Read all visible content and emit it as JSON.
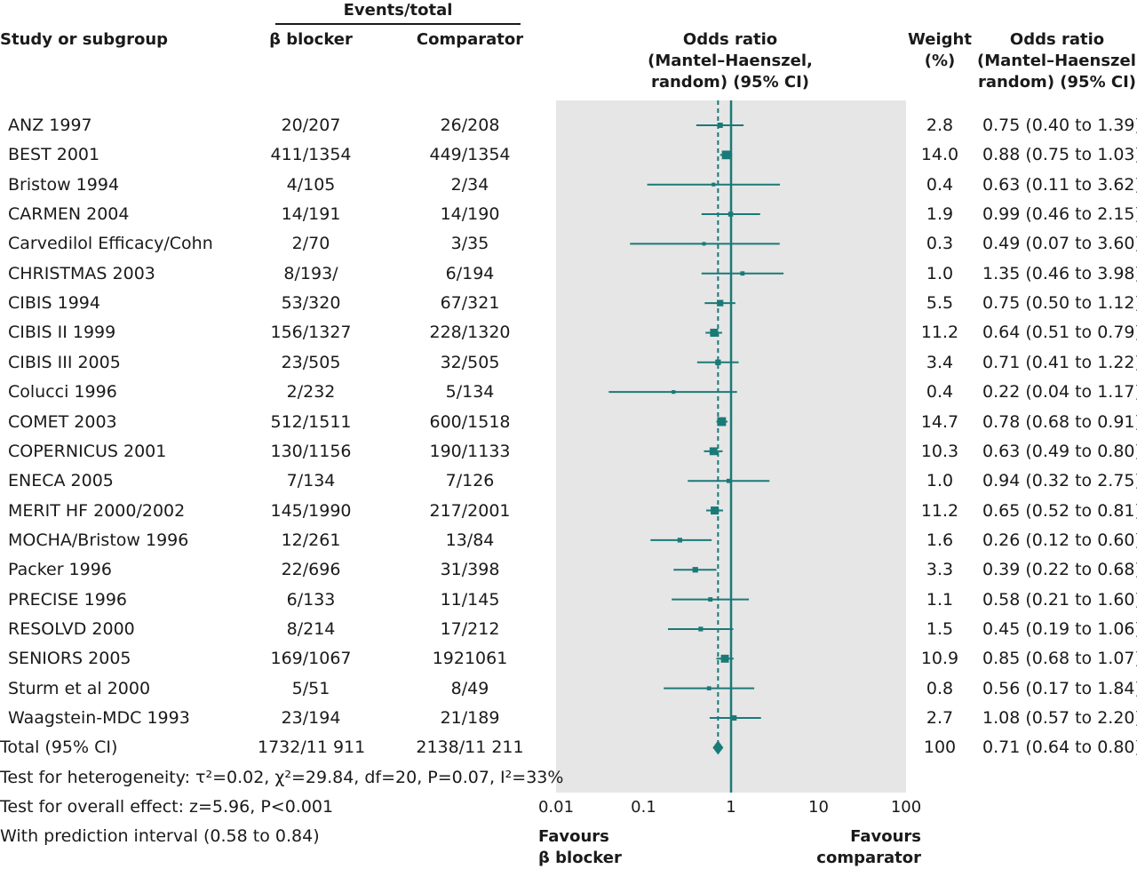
{
  "headers": {
    "events_total": "Events/total",
    "study": "Study or subgroup",
    "bblocker": "β blocker",
    "comparator": "Comparator",
    "or_line1": "Odds ratio",
    "or_line2": "(Mantel–Haenszel,",
    "or_line3": "random) (95% CI)",
    "weight_line1": "Weight",
    "weight_line2": "(%)",
    "or2_line1": "Odds ratio",
    "or2_line2": "(Mantel–Haenszel,",
    "or2_line3": "random) (95% CI)"
  },
  "footer": {
    "heterogeneity": "Test for heterogeneity: τ²=0.02, χ²=29.84, df=20, P=0.07, I²=33%",
    "overall_effect": "Test for overall effect: z=5.96, P<0.001",
    "prediction_interval": "With prediction interval (0.58 to 0.84)",
    "favours_left_1": "Favours",
    "favours_left_2": "β blocker",
    "favours_right_1": "Favours",
    "favours_right_2": "comparator"
  },
  "colors": {
    "marker": "#1a7a78",
    "plot_bg": "#e6e6e6",
    "text": "#1a1a1a"
  },
  "chart_data": {
    "type": "forest",
    "title": "Odds ratio (Mantel–Haenszel, random) (95% CI)",
    "xscale": "log",
    "xlim": [
      0.01,
      100
    ],
    "xticks": [
      0.01,
      0.1,
      1,
      10,
      100
    ],
    "xtick_labels": [
      "0.01",
      "0.1",
      "1",
      "10",
      "100"
    ],
    "reference_line": 1,
    "pooled_estimate_line": 0.71,
    "studies": [
      {
        "name": "ANZ 1997",
        "bb": "20/207",
        "comp": "26/208",
        "weight": "2.8",
        "or_text": "0.75 (0.40 to 1.39)",
        "or": 0.75,
        "lo": 0.4,
        "hi": 1.39
      },
      {
        "name": "BEST 2001",
        "bb": "411/1354",
        "comp": "449/1354",
        "weight": "14.0",
        "or_text": "0.88 (0.75 to 1.03)",
        "or": 0.88,
        "lo": 0.75,
        "hi": 1.03
      },
      {
        "name": "Bristow 1994",
        "bb": "4/105",
        "comp": "2/34",
        "weight": "0.4",
        "or_text": "0.63 (0.11 to 3.62)",
        "or": 0.63,
        "lo": 0.11,
        "hi": 3.62
      },
      {
        "name": "CARMEN 2004",
        "bb": "14/191",
        "comp": "14/190",
        "weight": "1.9",
        "or_text": "0.99 (0.46 to 2.15)",
        "or": 0.99,
        "lo": 0.46,
        "hi": 2.15
      },
      {
        "name": "Carvedilol Efficacy/Cohn",
        "bb": "2/70",
        "comp": "3/35",
        "weight": "0.3",
        "or_text": "0.49 (0.07 to 3.60)",
        "or": 0.49,
        "lo": 0.07,
        "hi": 3.6
      },
      {
        "name": "CHRISTMAS 2003",
        "bb": "8/193/",
        "comp": "6/194",
        "weight": "1.0",
        "or_text": "1.35 (0.46 to 3.98)",
        "or": 1.35,
        "lo": 0.46,
        "hi": 3.98
      },
      {
        "name": "CIBIS 1994",
        "bb": "53/320",
        "comp": "67/321",
        "weight": "5.5",
        "or_text": "0.75 (0.50 to 1.12)",
        "or": 0.75,
        "lo": 0.5,
        "hi": 1.12
      },
      {
        "name": "CIBIS II 1999",
        "bb": "156/1327",
        "comp": "228/1320",
        "weight": "11.2",
        "or_text": "0.64 (0.51 to 0.79)",
        "or": 0.64,
        "lo": 0.51,
        "hi": 0.79
      },
      {
        "name": "CIBIS III 2005",
        "bb": "23/505",
        "comp": "32/505",
        "weight": "3.4",
        "or_text": "0.71 (0.41 to 1.22)",
        "or": 0.71,
        "lo": 0.41,
        "hi": 1.22
      },
      {
        "name": "Colucci 1996",
        "bb": "2/232",
        "comp": "5/134",
        "weight": "0.4",
        "or_text": "0.22 (0.04 to 1.17)",
        "or": 0.22,
        "lo": 0.04,
        "hi": 1.17
      },
      {
        "name": "COMET 2003",
        "bb": "512/1511",
        "comp": "600/1518",
        "weight": "14.7",
        "or_text": "0.78 (0.68 to 0.91)",
        "or": 0.78,
        "lo": 0.68,
        "hi": 0.91
      },
      {
        "name": "COPERNICUS 2001",
        "bb": "130/1156",
        "comp": "190/1133",
        "weight": "10.3",
        "or_text": "0.63 (0.49 to 0.80)",
        "or": 0.63,
        "lo": 0.49,
        "hi": 0.8
      },
      {
        "name": "ENECA 2005",
        "bb": "7/134",
        "comp": "7/126",
        "weight": "1.0",
        "or_text": "0.94 (0.32 to 2.75)",
        "or": 0.94,
        "lo": 0.32,
        "hi": 2.75
      },
      {
        "name": "MERIT HF 2000/2002",
        "bb": "145/1990",
        "comp": "217/2001",
        "weight": "11.2",
        "or_text": "0.65 (0.52 to 0.81)",
        "or": 0.65,
        "lo": 0.52,
        "hi": 0.81
      },
      {
        "name": "MOCHA/Bristow 1996",
        "bb": "12/261",
        "comp": "13/84",
        "weight": "1.6",
        "or_text": "0.26 (0.12 to 0.60)",
        "or": 0.26,
        "lo": 0.12,
        "hi": 0.6
      },
      {
        "name": "Packer 1996",
        "bb": "22/696",
        "comp": "31/398",
        "weight": "3.3",
        "or_text": "0.39 (0.22 to 0.68)",
        "or": 0.39,
        "lo": 0.22,
        "hi": 0.68
      },
      {
        "name": "PRECISE 1996",
        "bb": "6/133",
        "comp": "11/145",
        "weight": "1.1",
        "or_text": "0.58 (0.21 to 1.60)",
        "or": 0.58,
        "lo": 0.21,
        "hi": 1.6
      },
      {
        "name": "RESOLVD 2000",
        "bb": "8/214",
        "comp": "17/212",
        "weight": "1.5",
        "or_text": "0.45 (0.19 to 1.06)",
        "or": 0.45,
        "lo": 0.19,
        "hi": 1.06
      },
      {
        "name": "SENIORS 2005",
        "bb": "169/1067",
        "comp": "1921061",
        "weight": "10.9",
        "or_text": "0.85 (0.68 to 1.07)",
        "or": 0.85,
        "lo": 0.68,
        "hi": 1.07
      },
      {
        "name": "Sturm et al 2000",
        "bb": "5/51",
        "comp": "8/49",
        "weight": "0.8",
        "or_text": "0.56 (0.17 to 1.84)",
        "or": 0.56,
        "lo": 0.17,
        "hi": 1.84
      },
      {
        "name": "Waagstein-MDC 1993",
        "bb": "23/194",
        "comp": "21/189",
        "weight": "2.7",
        "or_text": "1.08 (0.57 to 2.20)",
        "or": 1.08,
        "lo": 0.57,
        "hi": 2.2
      }
    ],
    "total": {
      "name": "Total (95% CI)",
      "bb": "1732/11 911",
      "comp": "2138/11 211",
      "weight": "100",
      "or_text": "0.71 (0.64 to 0.80)",
      "or": 0.71,
      "lo": 0.64,
      "hi": 0.8
    }
  }
}
